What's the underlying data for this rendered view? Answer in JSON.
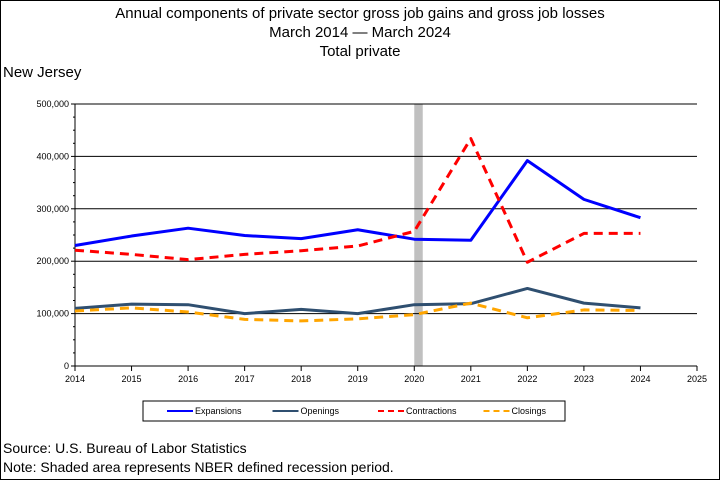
{
  "title": {
    "line1": "Annual components of private sector gross job gains and gross job losses",
    "line2": "March 2014 — March 2024",
    "line3": "Total private"
  },
  "state": "New Jersey",
  "footer": {
    "source": "Source: U.S. Bureau of Labor Statistics",
    "note": "Note: Shaded area represents NBER defined recession period."
  },
  "chart_data": {
    "type": "line",
    "x": [
      2014,
      2015,
      2016,
      2017,
      2018,
      2019,
      2020,
      2021,
      2022,
      2023,
      2024
    ],
    "xlim": [
      2014,
      2025
    ],
    "x_ticks": [
      "2014",
      "2015",
      "2016",
      "2017",
      "2018",
      "2019",
      "2020",
      "2021",
      "2022",
      "2023",
      "2024",
      "2025"
    ],
    "ylim": [
      0,
      500000
    ],
    "y_ticks": [
      "0",
      "100,000",
      "200,000",
      "300,000",
      "400,000",
      "500,000"
    ],
    "grid": true,
    "recession": [
      2020.0,
      2020.15
    ],
    "legend_position": "bottom",
    "series": [
      {
        "name": "Expansions",
        "color": "#0000ff",
        "dash": "solid",
        "values": [
          230000,
          248000,
          263000,
          249000,
          243000,
          260000,
          242000,
          240000,
          392000,
          318000,
          283000
        ]
      },
      {
        "name": "Openings",
        "color": "#2f4f70",
        "dash": "solid",
        "values": [
          110000,
          118000,
          117000,
          100000,
          108000,
          100000,
          117000,
          119000,
          148000,
          120000,
          111000
        ]
      },
      {
        "name": "Contractions",
        "color": "#ff0000",
        "dash": "dashed",
        "values": [
          221000,
          213000,
          203000,
          213000,
          220000,
          229000,
          257000,
          434000,
          198000,
          253000,
          253000
        ]
      },
      {
        "name": "Closings",
        "color": "#ffa500",
        "dash": "dashed",
        "values": [
          105000,
          111000,
          103000,
          89000,
          86000,
          90000,
          98000,
          120000,
          92000,
          107000,
          106000
        ]
      }
    ]
  }
}
